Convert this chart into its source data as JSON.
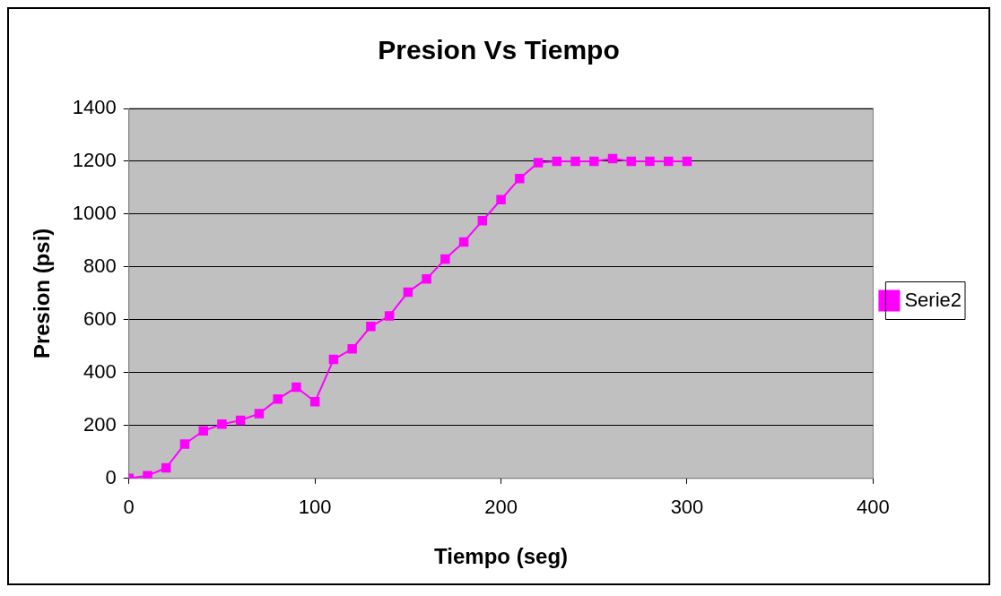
{
  "chart_data": {
    "type": "line",
    "title": "Presion Vs Tiempo",
    "xlabel": "Tiempo (seg)",
    "ylabel": "Presion (psi)",
    "x": [
      0,
      10,
      20,
      30,
      40,
      50,
      60,
      70,
      80,
      90,
      100,
      110,
      120,
      130,
      140,
      150,
      160,
      170,
      180,
      190,
      200,
      210,
      220,
      230,
      240,
      250,
      260,
      270,
      280,
      290,
      300
    ],
    "series": [
      {
        "name": "Serie2",
        "color": "#ff00ff",
        "values": [
          0,
          10,
          40,
          130,
          180,
          205,
          220,
          245,
          300,
          345,
          290,
          450,
          490,
          575,
          615,
          705,
          755,
          830,
          895,
          975,
          1055,
          1135,
          1195,
          1200,
          1200,
          1200,
          1210,
          1200,
          1200,
          1200,
          1200
        ]
      }
    ],
    "xlim": [
      0,
      400
    ],
    "xticks": [
      0,
      100,
      200,
      300,
      400
    ],
    "ylim": [
      0,
      1400
    ],
    "yticks": [
      0,
      200,
      400,
      600,
      800,
      1000,
      1200,
      1400
    ],
    "grid": "y",
    "legend": "right",
    "marker": "square",
    "line_style": "solid"
  }
}
